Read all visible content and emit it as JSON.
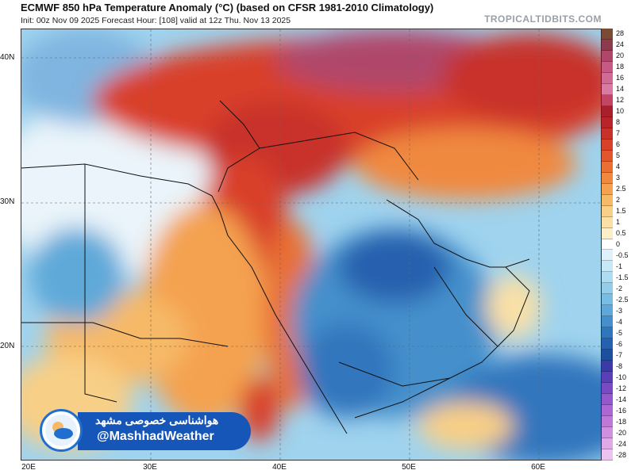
{
  "header": {
    "title": "ECMWF 850 hPa Temperature Anomaly (°C) (based on CFSR 1981-2010 Climatology)",
    "subtitle": "Init: 00z Nov 09 2025   Forecast Hour: [108]   valid at 12z Thu. Nov 13 2025",
    "brand": "TROPICALTIDBITS.COM"
  },
  "map": {
    "lat_labels": [
      "40N",
      "30N",
      "20N"
    ],
    "lon_labels": [
      "20E",
      "30E",
      "40E",
      "50E",
      "60E"
    ]
  },
  "colorbar": {
    "labels": [
      "28",
      "24",
      "20",
      "18",
      "16",
      "14",
      "12",
      "10",
      "8",
      "7",
      "6",
      "5",
      "4",
      "3",
      "2.5",
      "2",
      "1.5",
      "1",
      "0.5",
      "0",
      "-0.5",
      "-1",
      "-1.5",
      "-2",
      "-2.5",
      "-3",
      "-4",
      "-5",
      "-6",
      "-7",
      "-8",
      "-10",
      "-12",
      "-14",
      "-16",
      "-18",
      "-20",
      "-24",
      "-28"
    ],
    "colors": [
      "#7a4a35",
      "#8b3b4c",
      "#b0476a",
      "#c65a85",
      "#d06b95",
      "#d97aa3",
      "#c34565",
      "#a8202b",
      "#b8242a",
      "#c8302a",
      "#d9412b",
      "#e2562e",
      "#e96f35",
      "#f0893f",
      "#f4a250",
      "#f6b968",
      "#f8cf86",
      "#fae0a6",
      "#fbeec9",
      "#ffffff",
      "#dff1fa",
      "#c7e8f6",
      "#aedcf1",
      "#93cdea",
      "#78bde3",
      "#5ea9d9",
      "#4590cc",
      "#3076bd",
      "#2561ae",
      "#1c4f9e",
      "#3a3ba8",
      "#5a3fb8",
      "#7a4ac4",
      "#9557cc",
      "#ad66d2",
      "#c078d8",
      "#d18fdf",
      "#e0a8e6",
      "#ecc2ee"
    ]
  },
  "watermark": {
    "persian": "هواشناسی خصوصی مشهد",
    "handle": "@MashhadWeather"
  }
}
